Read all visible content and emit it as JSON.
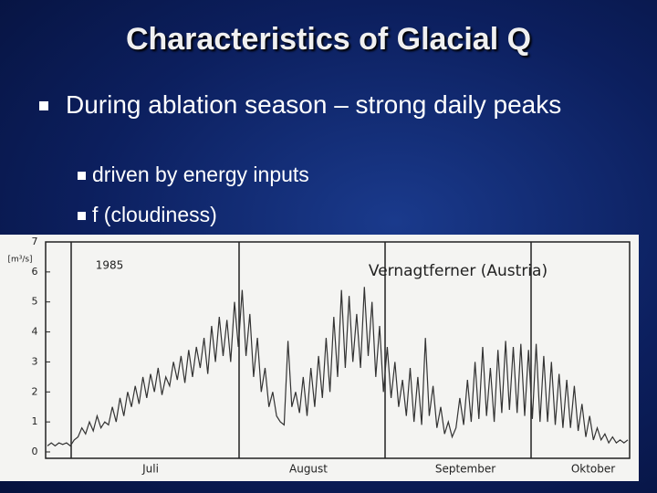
{
  "slide": {
    "title": "Characteristics of Glacial Q",
    "bullets": [
      {
        "text": "During ablation season – strong daily peaks",
        "sub": [
          "driven by energy inputs",
          "f (cloudiness)"
        ]
      }
    ]
  },
  "chart_data": {
    "type": "line",
    "y_label": "[m³/s]",
    "annotations": [
      "1985",
      "Vernagtferner (Austria)"
    ],
    "months": [
      "Juli",
      "August",
      "September",
      "Oktober"
    ],
    "color": "#333333",
    "ylim": [
      0,
      7
    ],
    "yticks": [
      0,
      1,
      2,
      3,
      4,
      5,
      6,
      7
    ],
    "values": [
      0.2,
      0.3,
      0.2,
      0.3,
      0.25,
      0.3,
      0.2,
      0.4,
      0.5,
      0.8,
      0.6,
      1.0,
      0.7,
      1.2,
      0.8,
      1.0,
      0.9,
      1.5,
      1.0,
      1.8,
      1.2,
      2.0,
      1.5,
      2.2,
      1.6,
      2.5,
      1.8,
      2.6,
      2.0,
      2.8,
      1.9,
      2.5,
      2.2,
      3.0,
      2.4,
      3.2,
      2.3,
      3.4,
      2.5,
      3.5,
      2.8,
      3.8,
      2.6,
      4.2,
      3.0,
      4.5,
      3.2,
      4.4,
      3.0,
      5.0,
      3.5,
      5.4,
      3.2,
      4.6,
      2.5,
      3.8,
      2.0,
      2.8,
      1.5,
      2.0,
      1.2,
      1.0,
      0.9,
      3.7,
      1.5,
      2.0,
      1.3,
      2.5,
      1.2,
      2.8,
      1.5,
      3.2,
      1.8,
      3.8,
      2.0,
      4.5,
      2.5,
      5.4,
      2.8,
      5.2,
      3.0,
      4.6,
      2.8,
      5.5,
      3.2,
      5.0,
      2.5,
      4.2,
      2.0,
      3.5,
      1.8,
      3.0,
      1.5,
      2.4,
      1.2,
      2.8,
      1.0,
      2.5,
      0.9,
      3.8,
      1.2,
      2.2,
      0.8,
      1.5,
      0.6,
      1.0,
      0.5,
      0.8,
      1.8,
      0.9,
      2.4,
      1.0,
      3.0,
      1.1,
      3.5,
      1.2,
      2.8,
      1.0,
      3.4,
      1.3,
      3.7,
      1.4,
      3.5,
      1.3,
      3.6,
      1.2,
      3.4,
      1.1,
      3.6,
      1.0,
      3.2,
      1.0,
      3.0,
      0.9,
      2.6,
      0.8,
      2.4,
      0.8,
      2.2,
      0.7,
      1.6,
      0.5,
      1.2,
      0.4,
      0.8,
      0.4,
      0.6,
      0.3,
      0.5,
      0.3,
      0.4,
      0.3,
      0.4
    ]
  }
}
